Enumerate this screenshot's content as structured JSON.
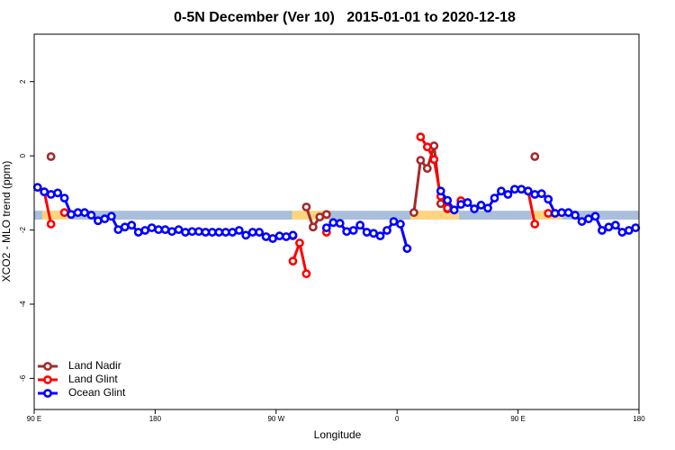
{
  "chart_data": {
    "type": "line",
    "title": "0-5N December (Ver 10)   2015-01-01 to 2020-12-18",
    "x_label": "Longitude",
    "y_label": "XCO2 - MLO trend (ppm)",
    "xlim": [
      90,
      540
    ],
    "ylim": [
      -6.84,
      3.28
    ],
    "xticks": [
      {
        "value": 90,
        "label": "90 E"
      },
      180,
      {
        "value": 270,
        "label": "90 W"
      },
      {
        "value": 360,
        "label": "0"
      },
      {
        "value": 450,
        "label": "90 E"
      },
      {
        "value": 540,
        "label": "180"
      }
    ],
    "yticks": [
      2,
      0,
      -2,
      -4,
      -6
    ],
    "legend": "bottom-left",
    "band_ylim": [
      -1.72,
      -1.48
    ],
    "bands": [
      {
        "from": 90,
        "to": 96,
        "color": "#a9bfdc"
      },
      {
        "from": 96,
        "to": 118,
        "color": "#fdd47f"
      },
      {
        "from": 118,
        "to": 282,
        "color": "#a9bfdc"
      },
      {
        "from": 282,
        "to": 309,
        "color": "#fdd47f"
      },
      {
        "from": 309,
        "to": 370,
        "color": "#a9bfdc"
      },
      {
        "from": 370,
        "to": 406,
        "color": "#fdd47f"
      },
      {
        "from": 406,
        "to": 460,
        "color": "#a9bfdc"
      },
      {
        "from": 460,
        "to": 483,
        "color": "#fdd47f"
      },
      {
        "from": 483,
        "to": 540,
        "color": "#a9bfdc"
      }
    ],
    "x": [
      92.5,
      97.5,
      102.5,
      107.5,
      112.5,
      117.5,
      122.5,
      127.5,
      132.5,
      137.5,
      142.5,
      147.5,
      152.5,
      157.5,
      162.5,
      167.5,
      172.5,
      177.5,
      182.5,
      187.5,
      192.5,
      197.5,
      202.5,
      207.5,
      212.5,
      217.5,
      222.5,
      227.5,
      232.5,
      237.5,
      242.5,
      247.5,
      252.5,
      257.5,
      262.5,
      267.5,
      272.5,
      277.5,
      282.5,
      287.5,
      292.5,
      297.5,
      302.5,
      307.5,
      312.5,
      317.5,
      322.5,
      327.5,
      332.5,
      337.5,
      342.5,
      347.5,
      352.5,
      357.5,
      362.5,
      367.5,
      372.5,
      377.5,
      382.5,
      387.5,
      392.5,
      397.5,
      402.5,
      407.5,
      412.5,
      417.5,
      422.5,
      427.5,
      432.5,
      437.5,
      442.5,
      447.5,
      452.5,
      457.5,
      462.5,
      467.5,
      472.5,
      477.5,
      482.5,
      487.5,
      492.5,
      497.5,
      502.5,
      507.5,
      512.5,
      517.5,
      522.5,
      527.5,
      532.5,
      537.5
    ],
    "series": [
      {
        "name": "Land Nadir",
        "color": "#a52a2a",
        "values": [
          null,
          null,
          -0.02,
          null,
          null,
          null,
          null,
          null,
          null,
          null,
          null,
          null,
          null,
          null,
          null,
          null,
          null,
          null,
          null,
          null,
          null,
          null,
          null,
          null,
          null,
          null,
          null,
          null,
          null,
          null,
          null,
          null,
          null,
          null,
          null,
          null,
          null,
          null,
          -2.16,
          null,
          -1.38,
          -1.92,
          -1.65,
          -1.58,
          null,
          null,
          null,
          null,
          null,
          null,
          null,
          null,
          null,
          null,
          null,
          null,
          -1.53,
          -0.12,
          -0.34,
          0.27,
          -1.29,
          -1.43,
          null,
          null,
          null,
          null,
          null,
          null,
          null,
          null,
          null,
          null,
          null,
          null,
          -0.02,
          null,
          null,
          null,
          null,
          null,
          null,
          null,
          null,
          null,
          null,
          null,
          null,
          null,
          null,
          null
        ]
      },
      {
        "name": "Land Glint",
        "color": "#ff0000",
        "values": [
          null,
          -0.97,
          -1.84,
          null,
          -1.53,
          null,
          null,
          null,
          null,
          null,
          null,
          null,
          null,
          null,
          null,
          null,
          null,
          null,
          null,
          null,
          null,
          null,
          null,
          null,
          null,
          null,
          null,
          null,
          null,
          null,
          null,
          null,
          null,
          null,
          null,
          null,
          null,
          null,
          -2.84,
          -2.35,
          -3.18,
          null,
          null,
          -2.06,
          null,
          null,
          null,
          null,
          null,
          null,
          null,
          null,
          null,
          null,
          null,
          null,
          null,
          0.51,
          0.24,
          -0.1,
          -1.09,
          -1.41,
          null,
          -1.21,
          null,
          null,
          null,
          null,
          null,
          null,
          null,
          null,
          null,
          -0.95,
          -1.84,
          null,
          -1.55,
          null,
          null,
          null,
          null,
          null,
          null,
          null,
          null,
          null,
          null,
          null,
          null,
          null
        ]
      },
      {
        "name": "Ocean Glint",
        "color": "#0000ff",
        "values": [
          -0.85,
          -0.97,
          -1.04,
          -1.0,
          -1.14,
          -1.58,
          -1.53,
          -1.53,
          -1.6,
          -1.75,
          -1.7,
          -1.63,
          -1.99,
          -1.92,
          -1.87,
          -2.06,
          -2.01,
          -1.94,
          -1.99,
          -1.99,
          -2.04,
          -1.99,
          -2.06,
          -2.04,
          -2.04,
          -2.06,
          -2.06,
          -2.06,
          -2.06,
          -2.06,
          -2.01,
          -2.14,
          -2.06,
          -2.06,
          -2.18,
          -2.23,
          -2.16,
          -2.18,
          -2.14,
          null,
          null,
          null,
          null,
          -1.94,
          -1.8,
          -1.82,
          -2.04,
          -2.01,
          -1.87,
          -2.06,
          -2.09,
          -2.16,
          -2.01,
          -1.77,
          -1.84,
          -2.5,
          null,
          null,
          null,
          null,
          -0.95,
          -1.2,
          -1.46,
          -1.31,
          -1.26,
          -1.43,
          -1.33,
          -1.41,
          -1.14,
          -0.95,
          -1.04,
          -0.9,
          -0.9,
          -0.95,
          -1.04,
          -1.02,
          -1.17,
          -1.55,
          -1.53,
          -1.53,
          -1.6,
          -1.77,
          -1.7,
          -1.63,
          -2.01,
          -1.92,
          -1.87,
          -2.06,
          -2.01,
          -1.94
        ]
      }
    ]
  }
}
